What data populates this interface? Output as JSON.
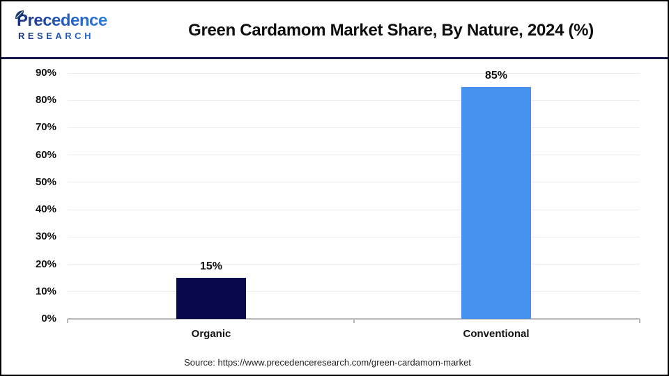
{
  "header": {
    "logo": {
      "wordmark": "Precedence",
      "subtext": "RESEARCH"
    },
    "title": "Green Cardamom Market Share, By Nature, 2024 (%)"
  },
  "chart_data": {
    "type": "bar",
    "title": "Green Cardamom Market Share, By Nature, 2024 (%)",
    "categories": [
      "Organic",
      "Conventional"
    ],
    "values": [
      15,
      85
    ],
    "value_labels": [
      "15%",
      "85%"
    ],
    "xlabel": "",
    "ylabel": "",
    "ylim": [
      0,
      90
    ],
    "ytick_labels": [
      "0%",
      "10%",
      "20%",
      "30%",
      "40%",
      "50%",
      "60%",
      "70%",
      "80%",
      "90%"
    ],
    "grid": true,
    "legend": false,
    "bar_colors": [
      "#08084f",
      "#4593ef"
    ]
  },
  "footer": {
    "source": "Source: https://www.precedenceresearch.com/green-cardamom-market"
  },
  "colors": {
    "organic_bar": "#08084f",
    "conventional_bar": "#4593ef",
    "header_divider": "#16164d",
    "logo_blue_dark": "#1c2f7d",
    "logo_blue_light": "#2e7be0",
    "gridline": "#ececec",
    "axis_line": "#b8b8b8",
    "title_text": "#0d0d0d"
  }
}
